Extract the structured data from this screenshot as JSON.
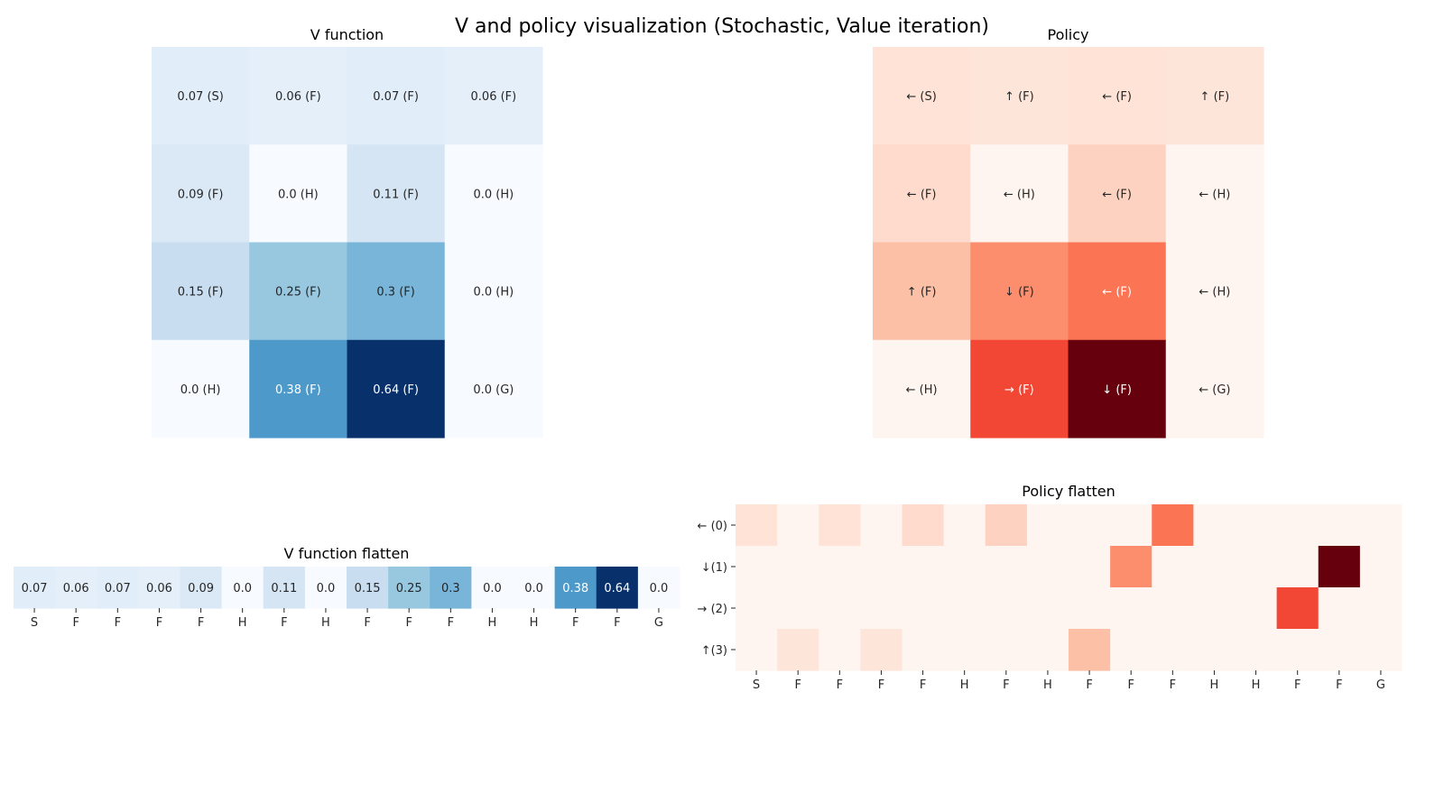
{
  "suptitle": "V and policy visualization (Stochastic, Value iteration)",
  "chart_data": [
    {
      "type": "heatmap",
      "title": "V function",
      "colormap": "Blues",
      "values": [
        [
          0.07,
          0.06,
          0.07,
          0.06
        ],
        [
          0.09,
          0.0,
          0.11,
          0.0
        ],
        [
          0.15,
          0.25,
          0.3,
          0.0
        ],
        [
          0.0,
          0.38,
          0.64,
          0.0
        ]
      ],
      "labels": [
        [
          "0.07 (S)",
          "0.06 (F)",
          "0.07 (F)",
          "0.06 (F)"
        ],
        [
          "0.09 (F)",
          "0.0 (H)",
          "0.11 (F)",
          "0.0 (H)"
        ],
        [
          "0.15 (F)",
          "0.25 (F)",
          "0.3 (F)",
          "0.0 (H)"
        ],
        [
          "0.0 (H)",
          "0.38 (F)",
          "0.64 (F)",
          "0.0 (G)"
        ]
      ]
    },
    {
      "type": "heatmap",
      "title": "Policy",
      "colormap": "Reds",
      "values": [
        [
          0.07,
          0.06,
          0.07,
          0.06
        ],
        [
          0.09,
          0.0,
          0.11,
          0.0
        ],
        [
          0.15,
          0.25,
          0.3,
          0.0
        ],
        [
          0.0,
          0.38,
          0.64,
          0.0
        ]
      ],
      "labels": [
        [
          "← (S)",
          "↑ (F)",
          "← (F)",
          "↑ (F)"
        ],
        [
          "← (F)",
          "← (H)",
          "← (F)",
          "← (H)"
        ],
        [
          "↑ (F)",
          "↓ (F)",
          "← (F)",
          "← (H)"
        ],
        [
          "← (H)",
          "→ (F)",
          "↓ (F)",
          "← (G)"
        ]
      ]
    },
    {
      "type": "heatmap",
      "title": "V function flatten",
      "colormap": "Blues",
      "values": [
        [
          0.07,
          0.06,
          0.07,
          0.06,
          0.09,
          0.0,
          0.11,
          0.0,
          0.15,
          0.25,
          0.3,
          0.0,
          0.0,
          0.38,
          0.64,
          0.0
        ]
      ],
      "labels": [
        [
          "0.07",
          "0.06",
          "0.07",
          "0.06",
          "0.09",
          "0.0",
          "0.11",
          "0.0",
          "0.15",
          "0.25",
          "0.3",
          "0.0",
          "0.0",
          "0.38",
          "0.64",
          "0.0"
        ]
      ],
      "xticklabels": [
        "S",
        "F",
        "F",
        "F",
        "F",
        "H",
        "F",
        "H",
        "F",
        "F",
        "F",
        "H",
        "H",
        "F",
        "F",
        "G"
      ]
    },
    {
      "type": "heatmap",
      "title": "Policy flatten",
      "colormap": "Reds",
      "values": [
        [
          0.07,
          0.0,
          0.07,
          0.0,
          0.09,
          0.0,
          0.11,
          0.0,
          0.0,
          0.0,
          0.3,
          0.0,
          0.0,
          0.0,
          0.0,
          0.0
        ],
        [
          0.0,
          0.0,
          0.0,
          0.0,
          0.0,
          0.0,
          0.0,
          0.0,
          0.0,
          0.25,
          0.0,
          0.0,
          0.0,
          0.0,
          0.64,
          0.0
        ],
        [
          0.0,
          0.0,
          0.0,
          0.0,
          0.0,
          0.0,
          0.0,
          0.0,
          0.0,
          0.0,
          0.0,
          0.0,
          0.0,
          0.38,
          0.0,
          0.0
        ],
        [
          0.0,
          0.06,
          0.0,
          0.06,
          0.0,
          0.0,
          0.0,
          0.0,
          0.15,
          0.0,
          0.0,
          0.0,
          0.0,
          0.0,
          0.0,
          0.0
        ]
      ],
      "xticklabels": [
        "S",
        "F",
        "F",
        "F",
        "F",
        "H",
        "F",
        "H",
        "F",
        "F",
        "F",
        "H",
        "H",
        "F",
        "F",
        "G"
      ],
      "yticklabels": [
        "← (0)",
        "↓(1)",
        "→ (2)",
        "↑(3)"
      ]
    }
  ]
}
